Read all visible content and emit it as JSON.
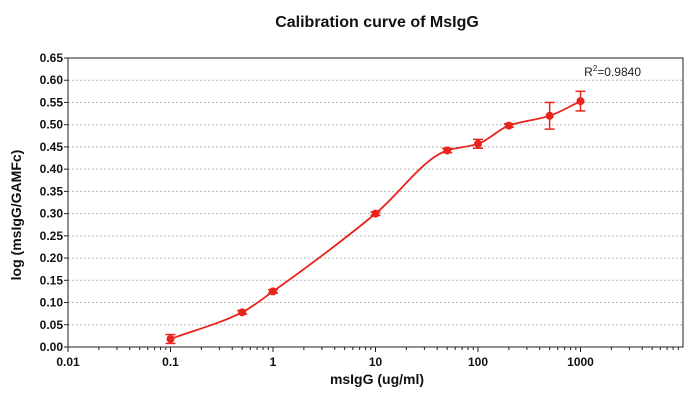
{
  "chart_data": {
    "type": "scatter",
    "title": "Calibration curve of MsIgG",
    "xlabel": "msIgG (ug/ml)",
    "ylabel": "log (msIgG/GAMFc)",
    "x_scale": "log",
    "xlim": [
      0.01,
      10000
    ],
    "ylim": [
      0,
      0.65
    ],
    "x_ticks": [
      0.01,
      0.1,
      1,
      10,
      100,
      1000
    ],
    "x_tick_labels": [
      "0.01",
      "0.1",
      "1",
      "10",
      "100",
      "1000"
    ],
    "y_ticks": [
      0,
      0.05,
      0.1,
      0.15,
      0.2,
      0.25,
      0.3,
      0.35,
      0.4,
      0.45,
      0.5,
      0.55,
      0.6,
      0.65
    ],
    "y_tick_labels": [
      "0.00",
      "0.05",
      "0.10",
      "0.15",
      "0.20",
      "0.25",
      "0.30",
      "0.35",
      "0.40",
      "0.45",
      "0.50",
      "0.55",
      "0.60",
      "0.65"
    ],
    "grid": true,
    "series": [
      {
        "x": [
          0.1,
          0.5,
          1,
          10,
          50,
          100,
          200,
          500,
          1000
        ],
        "y": [
          0.018,
          0.078,
          0.125,
          0.3,
          0.442,
          0.457,
          0.498,
          0.52,
          0.553
        ],
        "error": [
          0.01,
          0.004,
          0.004,
          0.004,
          0.005,
          0.01,
          0.004,
          0.03,
          0.022
        ],
        "color": "#e8251c"
      }
    ],
    "fit": {
      "type": "sigmoidal",
      "color": "#e8251c",
      "annotation_prefix": "R",
      "annotation_exp": "2",
      "annotation_value": "=0.9840"
    }
  }
}
